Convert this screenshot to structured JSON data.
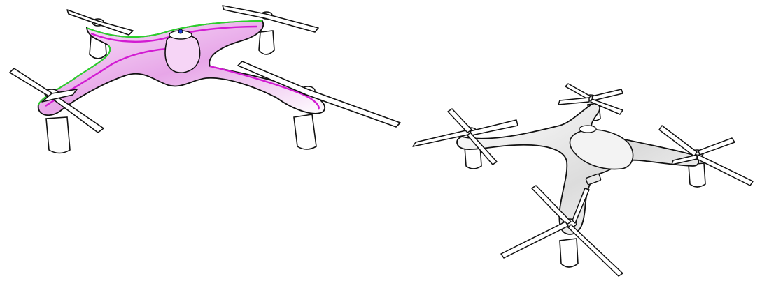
{
  "scene": {
    "background": "#ffffff",
    "drone_left": {
      "kind": "quadcopter-sketch",
      "accent_colors": [
        "#d21bd2",
        "#2bd12b"
      ]
    },
    "drone_right": {
      "kind": "quadcopter-sketch",
      "accent_colors": [
        "#f0f0f0",
        "#111111"
      ]
    }
  }
}
